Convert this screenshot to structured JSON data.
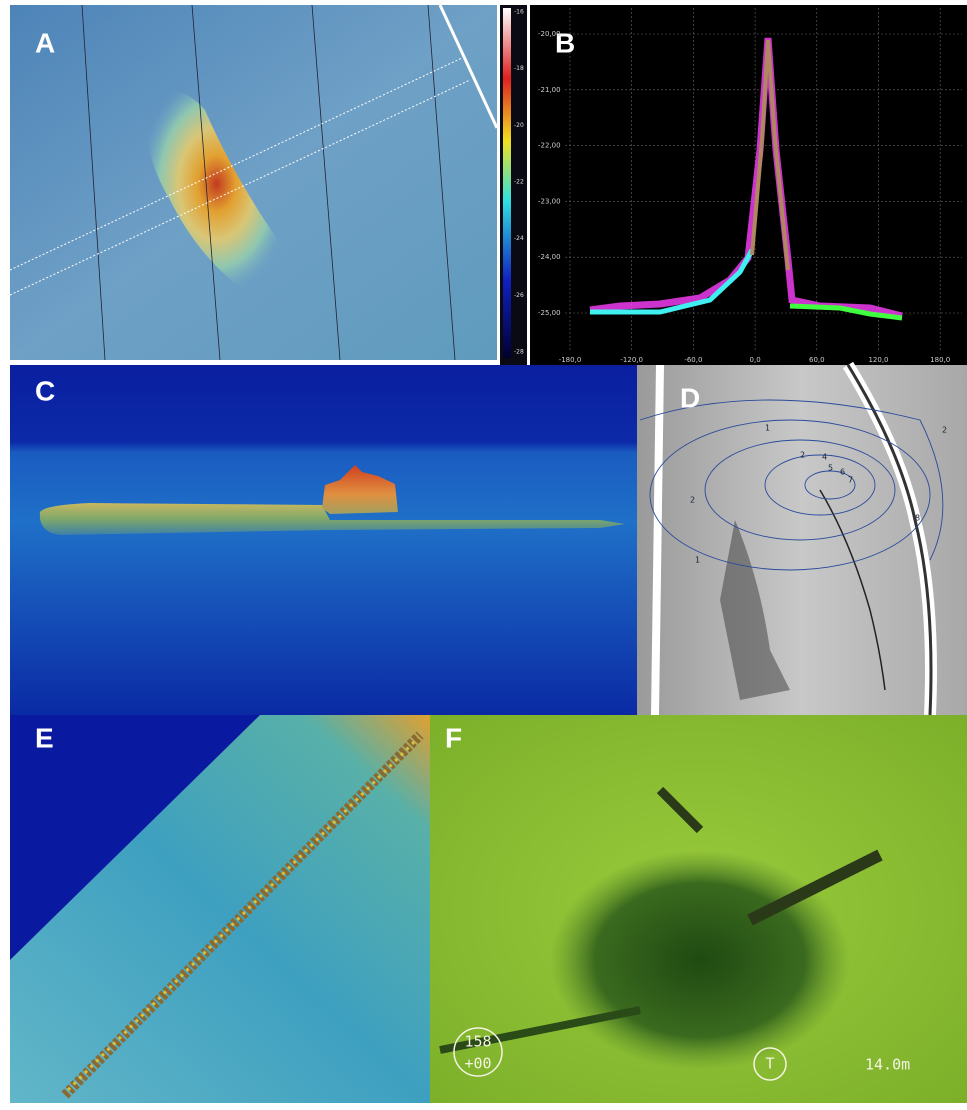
{
  "panels": [
    {
      "label": "A",
      "colorbar_ticks": [
        "-16",
        "-18",
        "-20",
        "-22",
        "-24",
        "-26",
        "-28"
      ]
    },
    {
      "label": "B",
      "y_ticks": [
        "-20,00",
        "-21,00",
        "-22,00",
        "-23,00",
        "-24,00",
        "-25,00"
      ],
      "x_ticks": [
        "-180,0",
        "-120,0",
        "-60,0",
        "0,0",
        "60,0",
        "120,0",
        "180,0"
      ]
    },
    {
      "label": "C"
    },
    {
      "label": "D",
      "contour_labels": [
        "1",
        "2",
        "4",
        "5",
        "6",
        "7",
        "8",
        "2",
        "1",
        "2"
      ]
    },
    {
      "label": "E"
    },
    {
      "label": "F",
      "overlay": [
        "158",
        "+00",
        "T",
        "14.0m"
      ]
    }
  ]
}
